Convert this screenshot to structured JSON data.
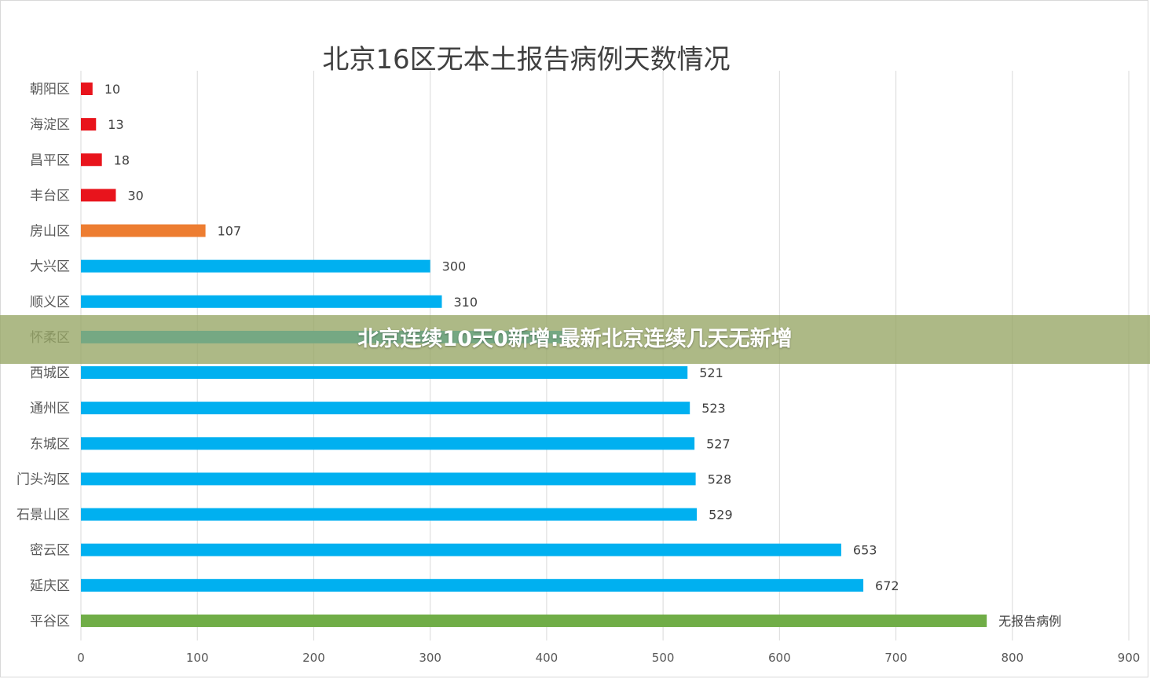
{
  "chart_data": {
    "type": "bar",
    "orientation": "horizontal",
    "title": "北京16区无本土报告病例天数情况",
    "xlim": [
      0,
      900
    ],
    "x_ticks": [
      0,
      100,
      200,
      300,
      400,
      500,
      600,
      700,
      800,
      900
    ],
    "grid": true,
    "categories": [
      "朝阳区",
      "海淀区",
      "昌平区",
      "丰台区",
      "房山区",
      "大兴区",
      "顺义区",
      "怀柔区",
      "西城区",
      "通州区",
      "东城区",
      "门头沟区",
      "石景山区",
      "密云区",
      "延庆区",
      "平谷区"
    ],
    "values": [
      10,
      13,
      18,
      30,
      107,
      300,
      310,
      420,
      521,
      523,
      527,
      528,
      529,
      653,
      672,
      778
    ],
    "data_labels": [
      "10",
      "13",
      "18",
      "30",
      "107",
      "300",
      "310",
      "",
      "521",
      "523",
      "527",
      "528",
      "529",
      "653",
      "672",
      "无报告病例"
    ],
    "bar_colors": [
      "#e8141c",
      "#e8141c",
      "#e8141c",
      "#e8141c",
      "#ed7d31",
      "#00b0f0",
      "#00b0f0",
      "#00b0f0",
      "#00b0f0",
      "#00b0f0",
      "#00b0f0",
      "#00b0f0",
      "#00b0f0",
      "#00b0f0",
      "#00b0f0",
      "#70ad47"
    ]
  },
  "overlay": {
    "headline": "北京连续10天0新增:最新北京连续几天无新增"
  },
  "colors": {
    "grid": "#d9d9d9",
    "label_text": "#595959",
    "overlay_bg": "#96a564"
  }
}
